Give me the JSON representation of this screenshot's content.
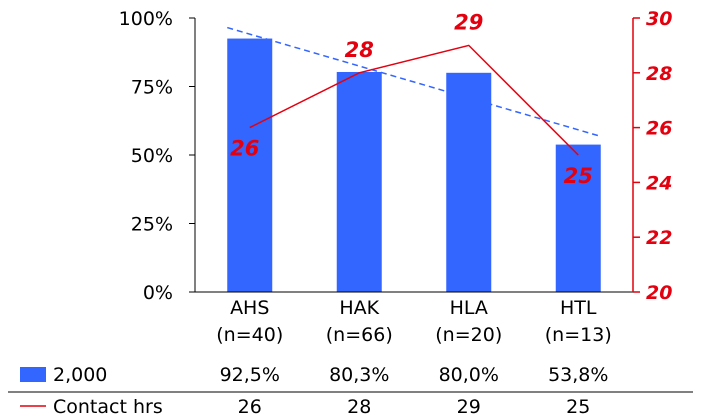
{
  "colors": {
    "bar": "#3366ff",
    "line": "#e3000f",
    "trend": "#3366ff",
    "axis_right": "#e3000f",
    "axis_left": "#000000"
  },
  "chart_data": {
    "type": "bar",
    "categories": [
      "AHS",
      "HAK",
      "HLA",
      "HTL"
    ],
    "category_sublabels": [
      "(n=40)",
      "(n=66)",
      "(n=20)",
      "(n=13)"
    ],
    "series": [
      {
        "name": "2,000",
        "type": "bar",
        "axis": "left",
        "values": [
          92.5,
          80.3,
          80.0,
          53.8
        ],
        "value_labels": [
          "92,5%",
          "80,3%",
          "80,0%",
          "53,8%"
        ]
      },
      {
        "name": "Contact hrs",
        "type": "line",
        "axis": "right",
        "values": [
          26,
          28,
          29,
          25
        ],
        "value_labels": [
          "26",
          "28",
          "29",
          "25"
        ]
      }
    ],
    "trendline": {
      "of_series": "2,000",
      "style": "dashed"
    },
    "y_left": {
      "ylim": [
        0,
        100
      ],
      "ticks": [
        0,
        25,
        50,
        75,
        100
      ],
      "tick_labels": [
        "0%",
        "25%",
        "50%",
        "75%",
        "100%"
      ]
    },
    "y_right": {
      "ylim": [
        20,
        30
      ],
      "ticks": [
        20,
        22,
        24,
        26,
        28,
        30
      ],
      "tick_labels": [
        "20",
        "22",
        "24",
        "26",
        "28",
        "30"
      ]
    },
    "grid": false,
    "legend": "table-below"
  }
}
